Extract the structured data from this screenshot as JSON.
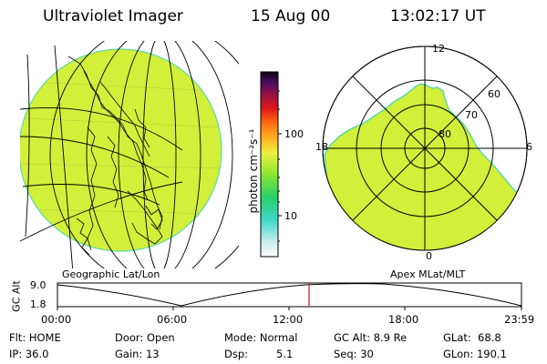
{
  "header": {
    "instrument": "Ultraviolet Imager",
    "date": "15 Aug 00",
    "time": "13:02:17 UT"
  },
  "panels": {
    "left_label": "Geographic Lat/Lon",
    "right_label": "Apex MLat/MLT"
  },
  "colorbar": {
    "unit": "photon cm⁻²s⁻¹",
    "ticks": [
      "100",
      "10"
    ]
  },
  "polar_plot": {
    "mlt_labels": {
      "top": "12",
      "left": "18",
      "right": "6",
      "bottom": "0"
    },
    "lat_labels": [
      "60",
      "70",
      "80"
    ]
  },
  "altitude_plot": {
    "ylabel": "GC Alt",
    "yticks": [
      "9.0",
      "1.8"
    ],
    "xticks": [
      "00:00",
      "06:00",
      "12:00",
      "18:00",
      "23:59"
    ],
    "marker_fraction": 0.543
  },
  "status": {
    "flt": "Flt: HOME",
    "ip": "IP: 36.0",
    "door": "Door: Open",
    "gain": "Gain: 13",
    "mode": "Mode: Normal",
    "dsp_label": "Dsp:",
    "dsp_value": "5.1",
    "gc_alt": "GC Alt: 8.9 Re",
    "seq": "Seq: 30",
    "glat": "GLat:  68.8",
    "glon": "GLon: 190.1"
  },
  "colors": {
    "emission": "#d2f03a",
    "edge": "#5ad8a4",
    "marker": "#cc1111"
  }
}
